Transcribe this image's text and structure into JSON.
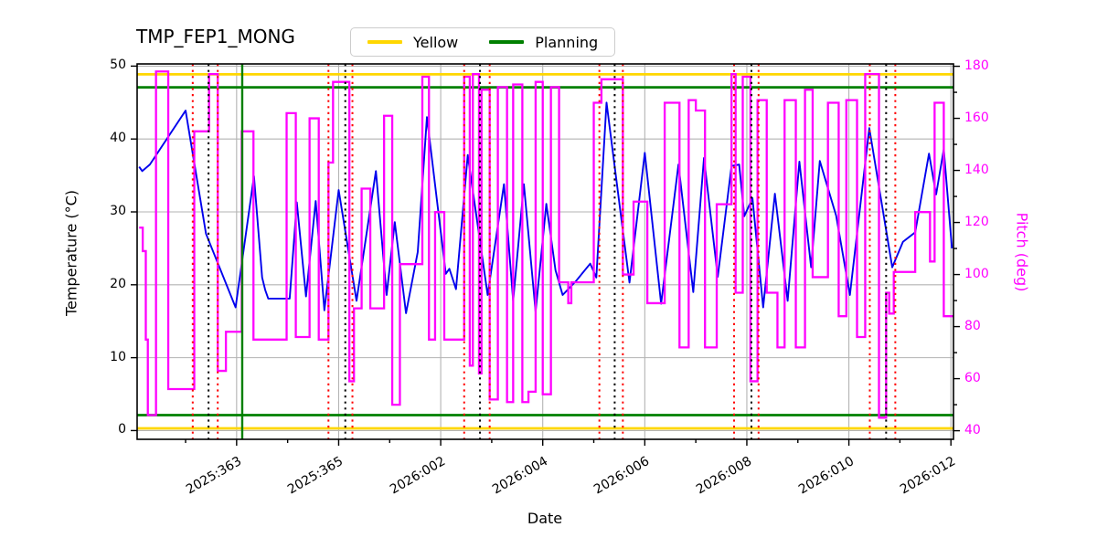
{
  "chart_data": {
    "type": "line",
    "title": "TMP_FEP1_MONG",
    "x_axis": {
      "label": "Date",
      "range_days": [
        361.05,
        377.05
      ],
      "tick_days": [
        363,
        365,
        367,
        369,
        371,
        373,
        375,
        377
      ],
      "tick_labels": [
        "2025:363",
        "2025:365",
        "2026:002",
        "2026:004",
        "2026:006",
        "2026:008",
        "2026:010",
        "2026:012"
      ],
      "minor_tick_days": [
        362,
        364,
        366,
        368,
        370,
        372,
        374,
        376
      ]
    },
    "y_left": {
      "label": "Temperature (°C)",
      "range": [
        -1.2,
        50.3
      ],
      "ticks": [
        0,
        10,
        20,
        30,
        40,
        50
      ],
      "color": "#000000"
    },
    "y_right": {
      "label": "Pitch (deg)",
      "range": [
        36.7,
        180.9
      ],
      "ticks": [
        40,
        60,
        80,
        100,
        120,
        140,
        160,
        180
      ],
      "minor_ticks": [
        50,
        70,
        90,
        110,
        130,
        150,
        170
      ],
      "color": "#ff00ff"
    },
    "grid": true,
    "grid_color": "#b3b3b3",
    "legend_position": "top-center",
    "series": [
      {
        "name": "Temperature",
        "axis": "left",
        "color": "#0000ee",
        "style": "line",
        "points": [
          [
            361.09,
            36.2
          ],
          [
            361.15,
            35.6
          ],
          [
            361.3,
            36.5
          ],
          [
            362.0,
            43.9
          ],
          [
            362.4,
            27.0
          ],
          [
            362.98,
            16.9
          ],
          [
            363.34,
            34.9
          ],
          [
            363.5,
            21.0
          ],
          [
            363.56,
            19.3
          ],
          [
            363.62,
            18.1
          ],
          [
            364.04,
            18.1
          ],
          [
            364.18,
            31.3
          ],
          [
            364.36,
            18.4
          ],
          [
            364.55,
            31.5
          ],
          [
            364.72,
            16.5
          ],
          [
            365.0,
            33.0
          ],
          [
            365.35,
            17.8
          ],
          [
            365.73,
            35.6
          ],
          [
            365.94,
            18.6
          ],
          [
            366.1,
            28.6
          ],
          [
            366.32,
            16.1
          ],
          [
            366.55,
            24.5
          ],
          [
            366.73,
            43.0
          ],
          [
            367.1,
            21.5
          ],
          [
            367.17,
            22.2
          ],
          [
            367.3,
            19.4
          ],
          [
            367.53,
            37.8
          ],
          [
            367.92,
            18.6
          ],
          [
            368.24,
            33.8
          ],
          [
            368.42,
            17.8
          ],
          [
            368.63,
            33.8
          ],
          [
            368.86,
            16.3
          ],
          [
            369.07,
            31.1
          ],
          [
            369.25,
            22.0
          ],
          [
            369.39,
            18.6
          ],
          [
            369.65,
            20.5
          ],
          [
            369.93,
            22.9
          ],
          [
            370.05,
            21.0
          ],
          [
            370.25,
            45.0
          ],
          [
            370.7,
            20.3
          ],
          [
            371.0,
            38.1
          ],
          [
            371.32,
            17.4
          ],
          [
            371.66,
            36.5
          ],
          [
            371.95,
            19.0
          ],
          [
            372.16,
            37.4
          ],
          [
            372.43,
            21.1
          ],
          [
            372.7,
            36.3
          ],
          [
            372.85,
            36.5
          ],
          [
            372.95,
            29.4
          ],
          [
            373.11,
            31.9
          ],
          [
            373.32,
            16.9
          ],
          [
            373.55,
            32.5
          ],
          [
            373.8,
            17.8
          ],
          [
            374.03,
            36.9
          ],
          [
            374.26,
            22.4
          ],
          [
            374.43,
            37.0
          ],
          [
            374.6,
            33.0
          ],
          [
            374.75,
            29.5
          ],
          [
            375.02,
            18.6
          ],
          [
            375.4,
            41.5
          ],
          [
            375.85,
            22.4
          ],
          [
            376.06,
            25.9
          ],
          [
            376.3,
            27.2
          ],
          [
            376.57,
            38.0
          ],
          [
            376.71,
            32.4
          ],
          [
            376.86,
            38.6
          ],
          [
            377.02,
            25.0
          ]
        ]
      },
      {
        "name": "Pitch",
        "axis": "right",
        "color": "#ff00ff",
        "style": "step",
        "points": [
          [
            361.09,
            118
          ],
          [
            361.16,
            109
          ],
          [
            361.22,
            75
          ],
          [
            361.26,
            46
          ],
          [
            361.42,
            178
          ],
          [
            361.66,
            56
          ],
          [
            362.17,
            155
          ],
          [
            362.46,
            177
          ],
          [
            362.63,
            63
          ],
          [
            362.79,
            78
          ],
          [
            363.1,
            155
          ],
          [
            363.33,
            75
          ],
          [
            363.98,
            162
          ],
          [
            364.16,
            76
          ],
          [
            364.43,
            160
          ],
          [
            364.61,
            75
          ],
          [
            364.8,
            143
          ],
          [
            364.89,
            174
          ],
          [
            365.21,
            59
          ],
          [
            365.3,
            87
          ],
          [
            365.45,
            133
          ],
          [
            365.62,
            87
          ],
          [
            365.89,
            161
          ],
          [
            366.05,
            50
          ],
          [
            366.2,
            104
          ],
          [
            366.64,
            176
          ],
          [
            366.77,
            75
          ],
          [
            366.89,
            124
          ],
          [
            367.07,
            75
          ],
          [
            367.46,
            176
          ],
          [
            367.57,
            65
          ],
          [
            367.63,
            177
          ],
          [
            367.75,
            62
          ],
          [
            367.8,
            171
          ],
          [
            367.96,
            52
          ],
          [
            368.12,
            172
          ],
          [
            368.3,
            51
          ],
          [
            368.42,
            173
          ],
          [
            368.6,
            51
          ],
          [
            368.72,
            55
          ],
          [
            368.86,
            174
          ],
          [
            369.0,
            54
          ],
          [
            369.16,
            172
          ],
          [
            369.32,
            97
          ],
          [
            369.5,
            89
          ],
          [
            369.56,
            97
          ],
          [
            370.0,
            166
          ],
          [
            370.15,
            175
          ],
          [
            370.57,
            100
          ],
          [
            370.78,
            128
          ],
          [
            371.05,
            89
          ],
          [
            371.39,
            166
          ],
          [
            371.68,
            72
          ],
          [
            371.86,
            167
          ],
          [
            372.0,
            163
          ],
          [
            372.18,
            72
          ],
          [
            372.41,
            127
          ],
          [
            372.7,
            177
          ],
          [
            372.78,
            93
          ],
          [
            372.92,
            176
          ],
          [
            373.07,
            59
          ],
          [
            373.21,
            167
          ],
          [
            373.39,
            93
          ],
          [
            373.6,
            72
          ],
          [
            373.74,
            167
          ],
          [
            373.96,
            72
          ],
          [
            374.14,
            171
          ],
          [
            374.29,
            99
          ],
          [
            374.59,
            166
          ],
          [
            374.8,
            84
          ],
          [
            374.95,
            167
          ],
          [
            375.16,
            76
          ],
          [
            375.32,
            177
          ],
          [
            375.59,
            45
          ],
          [
            375.73,
            93
          ],
          [
            375.79,
            85
          ],
          [
            375.88,
            101
          ],
          [
            376.3,
            124
          ],
          [
            376.59,
            105
          ],
          [
            376.68,
            166
          ],
          [
            376.86,
            84
          ]
        ]
      }
    ],
    "hlines": [
      {
        "label": "Yellow",
        "color": "#ffd700",
        "axis": "right",
        "values": [
          176.9,
          40.9
        ]
      },
      {
        "label": "Planning",
        "color": "#008000",
        "axis": "right",
        "values": [
          171.9,
          46.0
        ]
      }
    ],
    "vlines": [
      {
        "day": 362.14,
        "color": "#ff0000",
        "style": "dotted"
      },
      {
        "day": 362.45,
        "color": "#000000",
        "style": "dotted"
      },
      {
        "day": 362.63,
        "color": "#ff0000",
        "style": "dotted"
      },
      {
        "day": 363.11,
        "color": "#008000",
        "style": "solid"
      },
      {
        "day": 364.8,
        "color": "#ff0000",
        "style": "dotted"
      },
      {
        "day": 365.13,
        "color": "#000000",
        "style": "dotted"
      },
      {
        "day": 365.27,
        "color": "#ff0000",
        "style": "dotted"
      },
      {
        "day": 367.46,
        "color": "#ff0000",
        "style": "dotted"
      },
      {
        "day": 367.77,
        "color": "#000000",
        "style": "dotted"
      },
      {
        "day": 367.96,
        "color": "#ff0000",
        "style": "dotted"
      },
      {
        "day": 370.11,
        "color": "#ff0000",
        "style": "dotted"
      },
      {
        "day": 370.41,
        "color": "#000000",
        "style": "dotted"
      },
      {
        "day": 370.57,
        "color": "#ff0000",
        "style": "dotted"
      },
      {
        "day": 372.75,
        "color": "#ff0000",
        "style": "dotted"
      },
      {
        "day": 373.09,
        "color": "#000000",
        "style": "dotted"
      },
      {
        "day": 373.23,
        "color": "#ff0000",
        "style": "dotted"
      },
      {
        "day": 375.41,
        "color": "#ff0000",
        "style": "dotted"
      },
      {
        "day": 375.73,
        "color": "#000000",
        "style": "dotted"
      },
      {
        "day": 375.91,
        "color": "#ff0000",
        "style": "dotted"
      }
    ]
  }
}
